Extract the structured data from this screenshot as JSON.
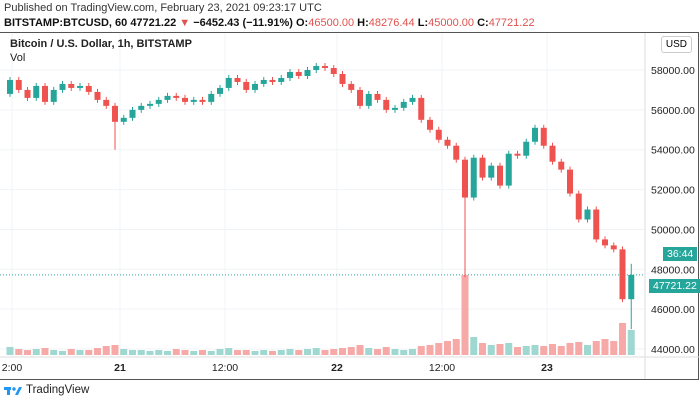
{
  "header": {
    "published": "Published on TradingView.com, February 23, 2021 09:23:17 UTC",
    "symbol": "BITSTAMP:BTCUSD, 60",
    "last": "47721.22",
    "arrow": "▼",
    "change": "−6452.43 (−11.91%)",
    "o_label": "O:",
    "o": "46500.00",
    "h_label": "H:",
    "h": "48276.44",
    "l_label": "L:",
    "l": "45000.00",
    "c_label": "C:",
    "c": "47721.22"
  },
  "legend": {
    "title": "Bitcoin / U.S. Dollar, 1h, BITSTAMP",
    "vol": "Vol"
  },
  "currency": "USD",
  "price_badge": "47721.22",
  "countdown": "36:44",
  "footer": {
    "brand": "TradingView"
  },
  "colors": {
    "up": "#26a69a",
    "down": "#ef5350",
    "vol_up": "#9fd8d1",
    "vol_down": "#f6a9a7"
  },
  "chart_data": {
    "type": "candlestick",
    "title": "Bitcoin / U.S. Dollar, 1h, BITSTAMP",
    "y_ticks": [
      "58000.00",
      "56000.00",
      "54000.00",
      "52000.00",
      "50000.00",
      "48000.00",
      "46000.00",
      "44000.00"
    ],
    "ylim": [
      43700,
      59300
    ],
    "x_ticks": [
      "2:00",
      "21",
      "12:00",
      "22",
      "12:00",
      "23"
    ],
    "first_open": 56800,
    "closes": [
      57500,
      57000,
      56600,
      57200,
      56400,
      57000,
      57300,
      57100,
      57200,
      56900,
      56500,
      56200,
      55400,
      55600,
      56000,
      56200,
      56300,
      56500,
      56700,
      56600,
      56400,
      56500,
      56400,
      56800,
      57100,
      57600,
      57400,
      57000,
      57300,
      57500,
      57400,
      57600,
      57900,
      57700,
      58000,
      58200,
      58100,
      57800,
      57300,
      57000,
      56200,
      56800,
      56500,
      56000,
      56100,
      56400,
      56600,
      55500,
      55000,
      54500,
      54200,
      53500,
      51600,
      53600,
      52600,
      53200,
      52200,
      53800,
      53700,
      54400,
      55100,
      54200,
      53400,
      53000,
      51800,
      50500,
      51000,
      49500,
      49200,
      49000,
      46500,
      47721.22
    ],
    "special_lows": {
      "12": 54000,
      "52": 47600,
      "71": 45000
    },
    "special_highs": {
      "71": 48276.44
    },
    "volumes": [
      8,
      6,
      5,
      6,
      7,
      5,
      4,
      6,
      5,
      5,
      7,
      9,
      10,
      6,
      5,
      5,
      4,
      5,
      4,
      6,
      5,
      4,
      5,
      4,
      6,
      7,
      5,
      5,
      4,
      5,
      4,
      5,
      6,
      5,
      6,
      7,
      5,
      6,
      7,
      8,
      10,
      7,
      6,
      8,
      6,
      5,
      6,
      9,
      10,
      12,
      14,
      16,
      80,
      18,
      12,
      10,
      11,
      12,
      8,
      9,
      10,
      9,
      11,
      9,
      12,
      13,
      10,
      14,
      16,
      14,
      32,
      25
    ]
  }
}
